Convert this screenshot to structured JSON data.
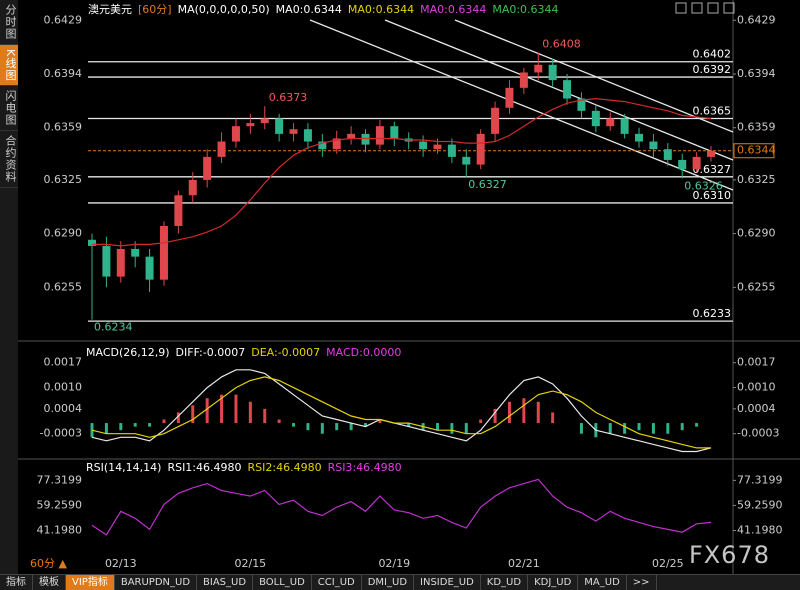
{
  "ui": {
    "sidebar": [
      "分时图",
      "K线图",
      "闪电图",
      "合约资料"
    ],
    "tabs": [
      "指标",
      "模板",
      "VIP指标",
      "BARUPDN_UD",
      "BIAS_UD",
      "BOLL_UD",
      "CCI_UD",
      "DMI_UD",
      "INSIDE_UD",
      "KD_UD",
      "KDJ_UD",
      "MA_UD",
      ">>"
    ],
    "period": "60分 ▲",
    "watermark": "FX678"
  },
  "chart_data": [
    {
      "type": "candlestick",
      "legend": [
        {
          "text": "澳元美元",
          "color": "#ffffff"
        },
        {
          "text": "[60分]",
          "color": "#e07b1a"
        },
        {
          "text": "MA(0,0,0,0,0,50)",
          "color": "#ffffff"
        },
        {
          "text": "MA0:0.6344",
          "color": "#ffffff"
        },
        {
          "text": "MA0:0.6344",
          "color": "#e6d200"
        },
        {
          "text": "MA0:0.6344",
          "color": "#e040e0"
        },
        {
          "text": "MA0:0.6344",
          "color": "#3ec150"
        }
      ],
      "ylim": [
        0.6222,
        0.6437
      ],
      "yticks": [
        0.6429,
        0.6394,
        0.6359,
        0.6325,
        {
          "value": 0.629,
          "label": "0.6290"
        },
        0.6255
      ],
      "up_color": "#e0474c",
      "down_color": "#2fb38a",
      "candles": {
        "open": [
          0.6286,
          0.6282,
          0.6262,
          0.628,
          0.6275,
          0.626,
          0.6295,
          0.6315,
          0.6325,
          0.634,
          0.635,
          0.636,
          0.6362,
          0.6365,
          0.6355,
          0.6358,
          0.635,
          0.6345,
          0.6352,
          0.6355,
          0.6348,
          0.636,
          0.6352,
          0.635,
          0.6345,
          0.6348,
          0.634,
          0.6335,
          0.6355,
          0.6372,
          0.6385,
          0.6395,
          0.64,
          0.639,
          0.6378,
          0.637,
          0.636,
          0.6365,
          0.6355,
          0.635,
          0.6345,
          0.6338,
          0.6332,
          0.634
        ],
        "high": [
          0.629,
          0.6288,
          0.6285,
          0.6285,
          0.628,
          0.6298,
          0.6318,
          0.633,
          0.6345,
          0.6356,
          0.6365,
          0.6368,
          0.6373,
          0.6368,
          0.6362,
          0.6362,
          0.6355,
          0.6357,
          0.636,
          0.6358,
          0.6364,
          0.6363,
          0.6356,
          0.6354,
          0.6352,
          0.6352,
          0.6345,
          0.6358,
          0.6376,
          0.639,
          0.6398,
          0.6408,
          0.6404,
          0.6394,
          0.6382,
          0.6374,
          0.6369,
          0.6368,
          0.6359,
          0.6355,
          0.6349,
          0.6342,
          0.6343,
          0.6347
        ],
        "low": [
          0.6234,
          0.6255,
          0.6258,
          0.6268,
          0.6252,
          0.6256,
          0.629,
          0.631,
          0.632,
          0.6336,
          0.6346,
          0.6355,
          0.6358,
          0.635,
          0.635,
          0.6345,
          0.634,
          0.6342,
          0.6348,
          0.6343,
          0.6345,
          0.6347,
          0.6345,
          0.634,
          0.6342,
          0.6336,
          0.6327,
          0.6332,
          0.635,
          0.6368,
          0.6381,
          0.639,
          0.6386,
          0.6374,
          0.6365,
          0.6356,
          0.6357,
          0.6352,
          0.6346,
          0.634,
          0.6334,
          0.6326,
          0.633,
          0.6337
        ],
        "close": [
          0.6282,
          0.6262,
          0.628,
          0.6275,
          0.626,
          0.6295,
          0.6315,
          0.6325,
          0.634,
          0.635,
          0.636,
          0.6362,
          0.6365,
          0.6355,
          0.6358,
          0.635,
          0.6345,
          0.6352,
          0.6355,
          0.6348,
          0.636,
          0.6352,
          0.635,
          0.6345,
          0.6348,
          0.634,
          0.6335,
          0.6355,
          0.6372,
          0.6385,
          0.6395,
          0.64,
          0.639,
          0.6378,
          0.637,
          0.636,
          0.6365,
          0.6355,
          0.635,
          0.6345,
          0.6338,
          0.6332,
          0.634,
          0.6344
        ],
        "high_labels": [
          null,
          null,
          null,
          null,
          null,
          null,
          null,
          null,
          null,
          null,
          null,
          null,
          "0.6373",
          null,
          null,
          null,
          null,
          null,
          null,
          null,
          null,
          null,
          null,
          null,
          null,
          null,
          null,
          null,
          null,
          null,
          null,
          "0.6408",
          null,
          null,
          null,
          null,
          null,
          null,
          null,
          null,
          null,
          null,
          null,
          null
        ],
        "low_labels": [
          "0.6234",
          null,
          null,
          null,
          null,
          null,
          null,
          null,
          null,
          null,
          null,
          null,
          null,
          null,
          null,
          null,
          null,
          null,
          null,
          null,
          null,
          null,
          null,
          null,
          null,
          null,
          "0.6327",
          null,
          null,
          null,
          null,
          null,
          null,
          null,
          null,
          null,
          null,
          null,
          null,
          null,
          null,
          "0.6326",
          null,
          null
        ]
      },
      "series": [
        {
          "name": "MA",
          "color": "#d42a2a",
          "values": [
            0.6283,
            0.6283,
            0.6282,
            0.6283,
            0.6283,
            0.6284,
            0.6286,
            0.6288,
            0.6291,
            0.6295,
            0.6302,
            0.6312,
            0.6323,
            0.6333,
            0.6341,
            0.6346,
            0.6349,
            0.6351,
            0.6352,
            0.6352,
            0.6352,
            0.6352,
            0.6351,
            0.6351,
            0.635,
            0.635,
            0.6349,
            0.6349,
            0.635,
            0.6354,
            0.636,
            0.6366,
            0.6371,
            0.6375,
            0.6377,
            0.6378,
            0.6377,
            0.6376,
            0.6374,
            0.6372,
            0.637,
            0.6367,
            0.6366,
            0.6365
          ]
        }
      ],
      "levels": [
        0.6402,
        0.6392,
        0.6365,
        0.6327,
        {
          "value": 0.631,
          "label": "0.6310"
        },
        0.6233
      ],
      "last_price": 0.6344
    },
    {
      "type": "macd",
      "legend": [
        {
          "text": "MACD(26,12,9)",
          "color": "#ffffff"
        },
        {
          "text": "DIFF:-0.0007",
          "color": "#ffffff"
        },
        {
          "text": "DEA:-0.0007",
          "color": "#e6d200"
        },
        {
          "text": "MACD:0.0000",
          "color": "#e040e0"
        }
      ],
      "ylim": [
        -0.0009,
        0.0022
      ],
      "yticks": [
        0.0017,
        {
          "value": 0.001,
          "label": "0.0010"
        },
        0.0004,
        -0.0003
      ],
      "histogram": [
        -0.0004,
        -0.0003,
        -0.0002,
        -0.0001,
        -0.0001,
        0.0001,
        0.0003,
        0.0005,
        0.0007,
        0.0008,
        0.0008,
        0.0006,
        0.0004,
        0.0001,
        -0.0001,
        -0.0002,
        -0.0003,
        -0.0002,
        -0.0002,
        -0.0001,
        0.0001,
        0.0,
        -0.0001,
        -0.0002,
        -0.0002,
        -0.0003,
        -0.0003,
        0.0001,
        0.0004,
        0.0006,
        0.0007,
        0.0006,
        0.0003,
        0.0,
        -0.0003,
        -0.0004,
        -0.0003,
        -0.0003,
        -0.0002,
        -0.0003,
        -0.0003,
        -0.0002,
        -0.0001,
        0.0
      ],
      "series": [
        {
          "name": "DIFF",
          "color": "#e8e8e8",
          "values": [
            -0.0004,
            -0.0005,
            -0.0004,
            -0.0004,
            -0.0005,
            -0.0002,
            0.0002,
            0.0006,
            0.001,
            0.0013,
            0.0015,
            0.0015,
            0.0014,
            0.0011,
            0.0008,
            0.0005,
            0.0002,
            0.0001,
            0.0,
            -0.0001,
            0.0001,
            0.0,
            -0.0001,
            -0.0002,
            -0.0003,
            -0.0004,
            -0.0005,
            -0.0002,
            0.0003,
            0.0008,
            0.0012,
            0.0013,
            0.0011,
            0.0007,
            0.0002,
            -0.0002,
            -0.0003,
            -0.0004,
            -0.0005,
            -0.0006,
            -0.0007,
            -0.0008,
            -0.0008,
            -0.0007
          ]
        },
        {
          "name": "DEA",
          "color": "#e6d200",
          "values": [
            -0.0002,
            -0.0003,
            -0.0003,
            -0.0003,
            -0.0004,
            -0.0003,
            -0.0001,
            0.0001,
            0.0004,
            0.0007,
            0.001,
            0.0012,
            0.0013,
            0.0012,
            0.001,
            0.0008,
            0.0006,
            0.0004,
            0.0002,
            0.0001,
            0.0001,
            0.0,
            0.0,
            -0.0001,
            -0.0002,
            -0.0002,
            -0.0003,
            -0.0003,
            -0.0001,
            0.0002,
            0.0005,
            0.0008,
            0.0009,
            0.0008,
            0.0006,
            0.0003,
            0.0001,
            -0.0001,
            -0.0003,
            -0.0004,
            -0.0005,
            -0.0006,
            -0.0007,
            -0.0007
          ]
        }
      ],
      "up_color": "#e0474c",
      "down_color": "#2fb38a"
    },
    {
      "type": "line",
      "legend": [
        {
          "text": "RSI(14,14,14)",
          "color": "#ffffff"
        },
        {
          "text": "RSI1:46.4980",
          "color": "#ffffff"
        },
        {
          "text": "RSI2:46.4980",
          "color": "#e6d200"
        },
        {
          "text": "RSI3:46.4980",
          "color": "#e040e0"
        }
      ],
      "ylim": [
        25.7,
        88.4
      ],
      "yticks": [
        77.3199,
        {
          "value": 59.259,
          "label": "59.2590"
        },
        {
          "value": 41.198,
          "label": "41.1980"
        }
      ],
      "categories": [
        null,
        null,
        "02/13",
        null,
        null,
        null,
        null,
        null,
        null,
        null,
        null,
        "02/15",
        null,
        null,
        null,
        null,
        null,
        null,
        null,
        null,
        null,
        "02/19",
        null,
        null,
        null,
        null,
        null,
        null,
        null,
        null,
        "02/21",
        null,
        null,
        null,
        null,
        null,
        null,
        null,
        null,
        null,
        "02/25",
        null,
        null,
        null
      ],
      "series": [
        {
          "name": "RSI",
          "color": "#c030d0",
          "values": [
            45,
            38,
            55,
            50,
            42,
            60,
            68,
            72,
            75,
            70,
            68,
            66,
            70,
            60,
            63,
            55,
            52,
            58,
            62,
            55,
            66,
            56,
            54,
            50,
            52,
            47,
            43,
            58,
            66,
            72,
            75,
            78,
            66,
            58,
            54,
            48,
            55,
            50,
            47,
            44,
            42,
            40,
            46,
            47
          ]
        }
      ]
    }
  ]
}
